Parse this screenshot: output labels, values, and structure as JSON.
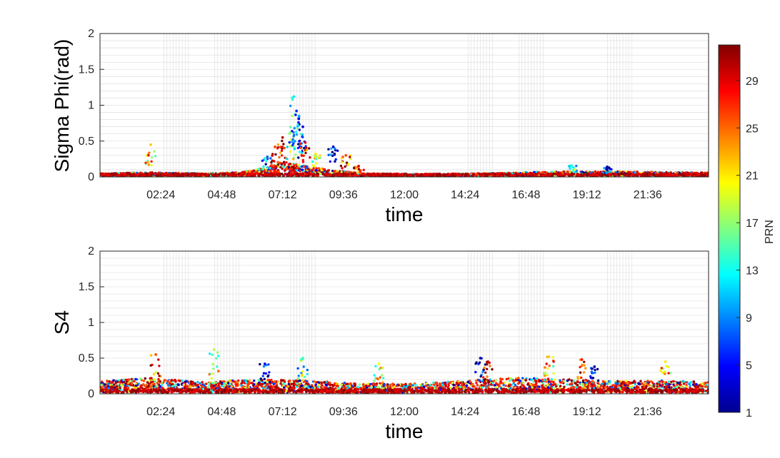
{
  "chart_data": [
    {
      "type": "scatter",
      "ylabel": "Sigma Phi(rad)",
      "xlabel": "time",
      "xlim": [
        0,
        24
      ],
      "ylim": [
        0,
        2
      ],
      "yticks": [
        "0",
        "0.5",
        "1",
        "1.5",
        "2"
      ],
      "xticks": [
        "02:24",
        "04:48",
        "07:12",
        "09:36",
        "12:00",
        "14:24",
        "16:48",
        "19:12",
        "21:36"
      ],
      "grid": true,
      "baseline": [
        {
          "t": 0.0,
          "v": 0.04
        },
        {
          "t": 2.0,
          "v": 0.05
        },
        {
          "t": 4.0,
          "v": 0.04
        },
        {
          "t": 5.5,
          "v": 0.05
        },
        {
          "t": 6.5,
          "v": 0.1
        },
        {
          "t": 7.3,
          "v": 0.16
        },
        {
          "t": 8.0,
          "v": 0.13
        },
        {
          "t": 9.0,
          "v": 0.08
        },
        {
          "t": 10.5,
          "v": 0.04
        },
        {
          "t": 12.0,
          "v": 0.03
        },
        {
          "t": 15.0,
          "v": 0.04
        },
        {
          "t": 18.0,
          "v": 0.06
        },
        {
          "t": 20.0,
          "v": 0.06
        },
        {
          "t": 24.0,
          "v": 0.05
        }
      ],
      "peaks": [
        {
          "t": 2.0,
          "v": 0.45,
          "prn": 22
        },
        {
          "t": 6.6,
          "v": 0.28,
          "prn": 8
        },
        {
          "t": 6.9,
          "v": 0.42,
          "prn": 26
        },
        {
          "t": 7.2,
          "v": 0.55,
          "prn": 30
        },
        {
          "t": 7.5,
          "v": 0.62,
          "prn": 17
        },
        {
          "t": 7.65,
          "v": 1.12,
          "prn": 12
        },
        {
          "t": 7.75,
          "v": 0.92,
          "prn": 6
        },
        {
          "t": 7.85,
          "v": 0.85,
          "prn": 10
        },
        {
          "t": 8.0,
          "v": 0.7,
          "prn": 4
        },
        {
          "t": 8.1,
          "v": 0.48,
          "prn": 28
        },
        {
          "t": 8.5,
          "v": 0.32,
          "prn": 21
        },
        {
          "t": 9.2,
          "v": 0.42,
          "prn": 3
        },
        {
          "t": 9.7,
          "v": 0.3,
          "prn": 26
        },
        {
          "t": 10.2,
          "v": 0.15,
          "prn": 29
        },
        {
          "t": 18.6,
          "v": 0.16,
          "prn": 14
        },
        {
          "t": 20.0,
          "v": 0.14,
          "prn": 3
        }
      ]
    },
    {
      "type": "scatter",
      "ylabel": "S4",
      "xlabel": "time",
      "xlim": [
        0,
        24
      ],
      "ylim": [
        0,
        2
      ],
      "yticks": [
        "0",
        "0.5",
        "1",
        "1.5",
        "2"
      ],
      "xticks": [
        "02:24",
        "04:48",
        "07:12",
        "09:36",
        "12:00",
        "14:24",
        "16:48",
        "19:12",
        "21:36"
      ],
      "grid": true,
      "baseline": [
        {
          "t": 0.0,
          "v": 0.14
        },
        {
          "t": 2.0,
          "v": 0.18
        },
        {
          "t": 4.0,
          "v": 0.13
        },
        {
          "t": 6.0,
          "v": 0.16
        },
        {
          "t": 8.0,
          "v": 0.15
        },
        {
          "t": 10.0,
          "v": 0.12
        },
        {
          "t": 12.0,
          "v": 0.11
        },
        {
          "t": 14.0,
          "v": 0.14
        },
        {
          "t": 16.0,
          "v": 0.18
        },
        {
          "t": 18.0,
          "v": 0.17
        },
        {
          "t": 20.0,
          "v": 0.14
        },
        {
          "t": 22.0,
          "v": 0.15
        },
        {
          "t": 24.0,
          "v": 0.13
        }
      ],
      "peaks": [
        {
          "t": 2.2,
          "v": 0.55,
          "prn": 26
        },
        {
          "t": 4.5,
          "v": 0.62,
          "prn": 18
        },
        {
          "t": 6.5,
          "v": 0.42,
          "prn": 4
        },
        {
          "t": 8.0,
          "v": 0.5,
          "prn": 14
        },
        {
          "t": 11.0,
          "v": 0.42,
          "prn": 20
        },
        {
          "t": 15.0,
          "v": 0.5,
          "prn": 3
        },
        {
          "t": 15.3,
          "v": 0.45,
          "prn": 30
        },
        {
          "t": 17.7,
          "v": 0.52,
          "prn": 22
        },
        {
          "t": 19.0,
          "v": 0.48,
          "prn": 28
        },
        {
          "t": 19.5,
          "v": 0.38,
          "prn": 2
        },
        {
          "t": 22.3,
          "v": 0.45,
          "prn": 21
        }
      ]
    }
  ],
  "colorbar": {
    "label": "PRN",
    "colormap": "jet",
    "range": [
      1,
      32
    ],
    "ticks": [
      "1",
      "5",
      "9",
      "13",
      "17",
      "21",
      "25",
      "29"
    ],
    "tick_values": [
      1,
      5,
      9,
      13,
      17,
      21,
      25,
      29
    ]
  }
}
